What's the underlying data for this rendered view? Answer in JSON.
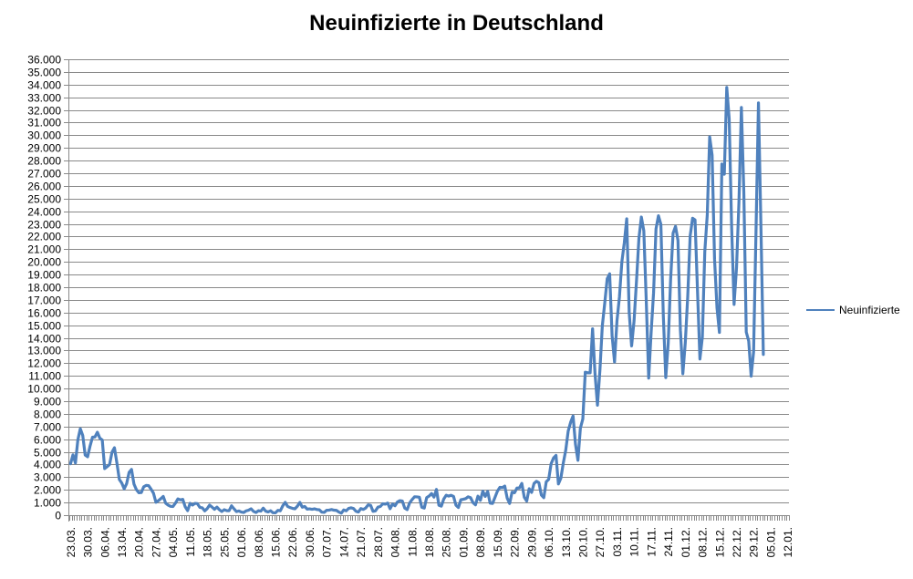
{
  "chart_data": {
    "type": "line",
    "title": "Neuinfizierte in Deutschland",
    "series_name": "Neuinfizierte",
    "legend_position": "right",
    "grid": true,
    "ylim": [
      0,
      36000
    ],
    "y_step": 1000,
    "y_tick_format": "german-thousands-dot",
    "n_categories": 295,
    "x_tick_every": 7,
    "x_tick_labels": [
      "23.03.",
      "30.03.",
      "06.04.",
      "13.04.",
      "20.04.",
      "27.04.",
      "04.05.",
      "11.05.",
      "18.05.",
      "25.05.",
      "01.06.",
      "08.06.",
      "15.06.",
      "22.06.",
      "30.06.",
      "07.07.",
      "14.07.",
      "21.07.",
      "28.07.",
      "04.08.",
      "11.08.",
      "18.08.",
      "25.08.",
      "01.09.",
      "08.09.",
      "15.09.",
      "22.09.",
      "29.09.",
      "06.10.",
      "13.10.",
      "20.10.",
      "27.10.",
      "03.11.",
      "10.11.",
      "17.11.",
      "24.11.",
      "01.12.",
      "08.12.",
      "15.12.",
      "22.12.",
      "29.12.",
      "05.01.",
      "12.01."
    ],
    "values": [
      4062,
      4764,
      4118,
      5940,
      6824,
      6294,
      4751,
      4615,
      5453,
      6156,
      6174,
      6549,
      6082,
      5936,
      3677,
      3834,
      4003,
      4974,
      5323,
      4133,
      2821,
      2537,
      2082,
      2486,
      3380,
      3609,
      2458,
      2018,
      1775,
      1785,
      2237,
      2352,
      2337,
      2055,
      1737,
      1018,
      1144,
      1304,
      1478,
      945,
      793,
      697,
      685,
      947,
      1284,
      1209,
      1251,
      667,
      357,
      933,
      798,
      933,
      913,
      620,
      583,
      342,
      513,
      797,
      639,
      460,
      638,
      431,
      289,
      432,
      362,
      353,
      741,
      507,
      286,
      333,
      247,
      213,
      342,
      394,
      507,
      301,
      214,
      350,
      318,
      555,
      318,
      258,
      348,
      192,
      186,
      378,
      345,
      742,
      1011,
      687,
      601,
      537,
      503,
      712,
      1007,
      630,
      687,
      477,
      498,
      466,
      503,
      446,
      422,
      239,
      219,
      390,
      397,
      442,
      395,
      378,
      248,
      159,
      412,
      345,
      534,
      583,
      529,
      305,
      249,
      522,
      454,
      569,
      815,
      781,
      305,
      340,
      633,
      684,
      902,
      870,
      955,
      509,
      879,
      741,
      1045,
      1147,
      1122,
      555,
      436,
      966,
      1226,
      1449,
      1445,
      1415,
      625,
      561,
      1390,
      1510,
      1707,
      1427,
      2034,
      782,
      711,
      1278,
      1576,
      1507,
      1571,
      1479,
      785,
      610,
      1218,
      1256,
      1311,
      1453,
      1378,
      988,
      814,
      1499,
      1176,
      1892,
      1484,
      1880,
      948,
      927,
      1407,
      1901,
      2194,
      2179,
      2297,
      1345,
      922,
      1821,
      1769,
      2143,
      2153,
      2507,
      1411,
      1111,
      2089,
      1798,
      2503,
      2673,
      2563,
      1592,
      1382,
      2639,
      2828,
      4058,
      4516,
      4721,
      2467,
      2924,
      4122,
      5132,
      6638,
      7334,
      7830,
      5587,
      4325,
      6868,
      7595,
      11287,
      11242,
      11242,
      14714,
      11176,
      8685,
      11409,
      14964,
      16774,
      18681,
      19059,
      14177,
      12097,
      15352,
      17214,
      19990,
      21506,
      23399,
      16017,
      13363,
      15332,
      18487,
      21866,
      23542,
      22461,
      16947,
      10824,
      14419,
      17561,
      22609,
      23648,
      22964,
      15741,
      10864,
      13554,
      18633,
      22268,
      22806,
      21695,
      14611,
      11169,
      13604,
      17270,
      22046,
      23449,
      23318,
      17767,
      12332,
      14054,
      20815,
      23679,
      29875,
      28438,
      20200,
      16362,
      14432,
      27728,
      26923,
      33777,
      31300,
      22771,
      16643,
      19528,
      24740,
      32195,
      25533,
      14455,
      13755,
      10976,
      12892,
      22459,
      32552,
      22924,
      12690
    ],
    "line_color": "#4F81BD",
    "gridline_color": "#898989",
    "axis_color": "#898989",
    "text_color": "#000000"
  }
}
